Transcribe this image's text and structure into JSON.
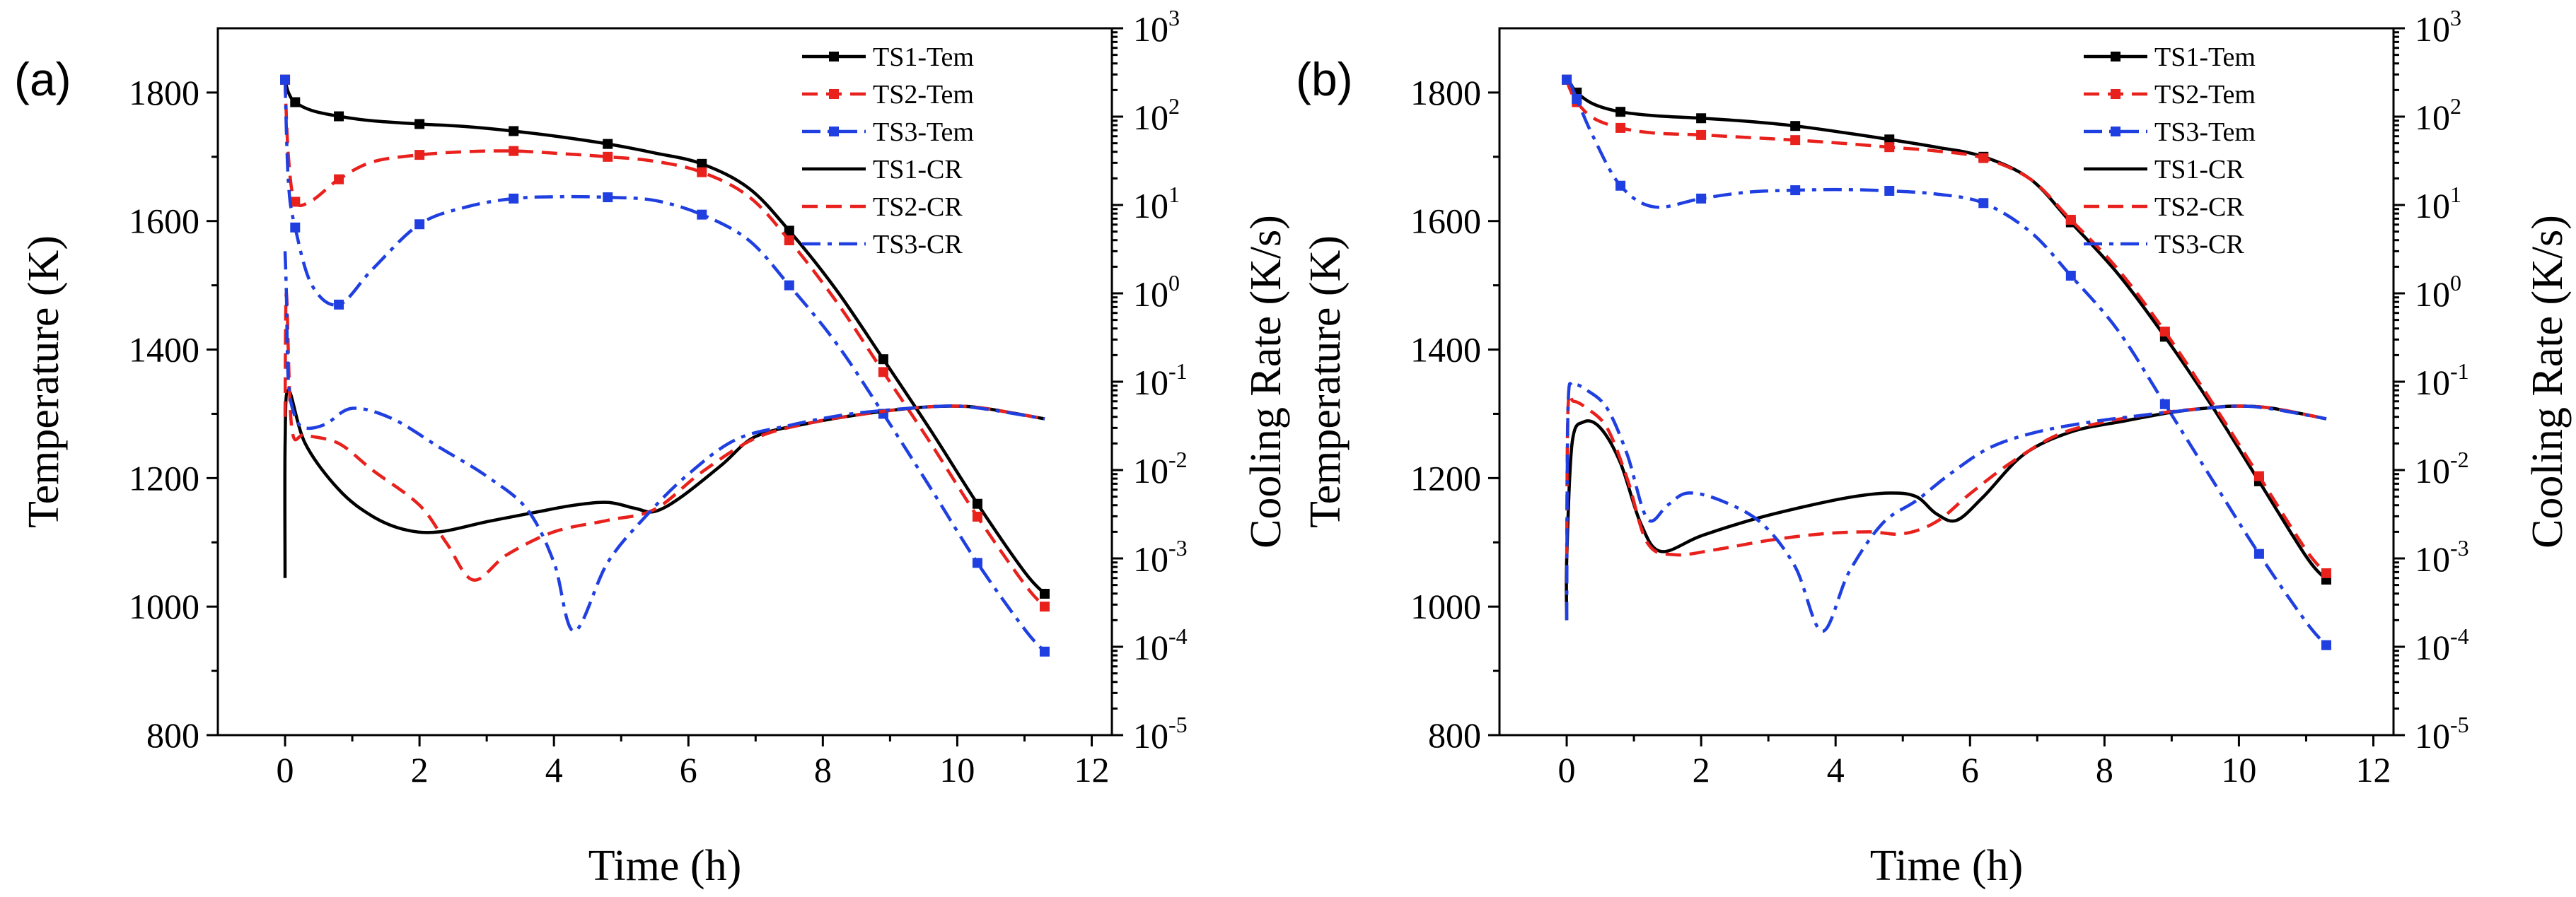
{
  "chart_data": [
    {
      "type": "line",
      "panel_label": "(a)",
      "xlabel": "Time (h)",
      "ylabel": "Temperature (K)",
      "y2label": "Cooling Rate (K/s)",
      "xlim": [
        -1.0,
        12.3
      ],
      "ylim": [
        800,
        1900
      ],
      "y2lim_log10": [
        -5,
        3
      ],
      "xticks": [
        0,
        2,
        4,
        6,
        8,
        10,
        12
      ],
      "yticks": [
        800,
        1000,
        1200,
        1400,
        1600,
        1800
      ],
      "y2ticks": [
        {
          "base": "10",
          "exp": "3"
        },
        {
          "base": "10",
          "exp": "2"
        },
        {
          "base": "10",
          "exp": "1"
        },
        {
          "base": "10",
          "exp": "0"
        },
        {
          "base": "10",
          "exp": "-1"
        },
        {
          "base": "10",
          "exp": "-2"
        },
        {
          "base": "10",
          "exp": "-3"
        },
        {
          "base": "10",
          "exp": "-4"
        },
        {
          "base": "10",
          "exp": "-5"
        }
      ],
      "legend": [
        "TS1-Tem",
        "TS2-Tem",
        "TS3-Tem",
        "TS1-CR",
        "TS2-CR",
        "TS3-CR"
      ],
      "series": [
        {
          "name": "TS1-Tem",
          "axis": "left",
          "color": "#000000",
          "dash": "solid",
          "marker": true,
          "x": [
            0,
            0.05,
            0.15,
            0.4,
            0.8,
            1.3,
            2.0,
            2.7,
            3.4,
            4.1,
            4.8,
            5.5,
            6.2,
            6.9,
            7.5,
            8.2,
            8.9,
            9.6,
            10.3,
            11.0,
            11.3
          ],
          "y": [
            1820,
            1800,
            1785,
            1772,
            1763,
            1756,
            1751,
            1747,
            1740,
            1731,
            1720,
            1706,
            1689,
            1651,
            1585,
            1493,
            1385,
            1275,
            1160,
            1054,
            1020
          ]
        },
        {
          "name": "TS2-Tem",
          "axis": "left",
          "color": "#e8211d",
          "dash": "dash",
          "marker": true,
          "x": [
            0,
            0.05,
            0.15,
            0.4,
            0.8,
            1.3,
            2.0,
            2.7,
            3.4,
            4.1,
            4.8,
            5.5,
            6.2,
            6.9,
            7.5,
            8.2,
            8.9,
            9.6,
            10.3,
            11.0,
            11.3
          ],
          "y": [
            1820,
            1700,
            1630,
            1632,
            1665,
            1692,
            1703,
            1708,
            1709,
            1705,
            1700,
            1693,
            1676,
            1638,
            1570,
            1475,
            1365,
            1255,
            1140,
            1035,
            1000
          ]
        },
        {
          "name": "TS3-Tem",
          "axis": "left",
          "color": "#1f3fe0",
          "dash": "dashdot",
          "marker": true,
          "x": [
            0,
            0.05,
            0.15,
            0.4,
            0.8,
            1.3,
            2.0,
            2.7,
            3.4,
            4.1,
            4.8,
            5.5,
            6.2,
            6.9,
            7.5,
            8.2,
            8.9,
            9.6,
            10.3,
            11.0,
            11.3
          ],
          "y": [
            1820,
            1660,
            1590,
            1500,
            1470,
            1525,
            1595,
            1622,
            1635,
            1638,
            1637,
            1632,
            1610,
            1570,
            1500,
            1410,
            1300,
            1185,
            1068,
            965,
            930
          ]
        },
        {
          "name": "TS1-CR",
          "axis": "right",
          "color": "#000000",
          "dash": "solid",
          "marker": false,
          "x": [
            0,
            0.001,
            0.05,
            0.3,
            0.8,
            1.3,
            1.8,
            2.3,
            3.0,
            3.7,
            4.3,
            4.8,
            5.2,
            5.5,
            5.9,
            6.5,
            7.0,
            7.8,
            8.5,
            9.3,
            9.9,
            10.4,
            11.3
          ],
          "y": [
            0.0006,
            0.02,
            0.08,
            0.02,
            0.006,
            0.003,
            0.0021,
            0.002,
            0.0026,
            0.0033,
            0.004,
            0.0043,
            0.0037,
            0.0034,
            0.005,
            0.0115,
            0.024,
            0.034,
            0.042,
            0.05,
            0.053,
            0.05,
            0.038
          ]
        },
        {
          "name": "TS2-CR",
          "axis": "right",
          "color": "#e8211d",
          "dash": "dash",
          "marker": false,
          "x": [
            0,
            0.02,
            0.1,
            0.3,
            0.8,
            1.3,
            2.0,
            2.4,
            2.8,
            3.3,
            4.0,
            4.8,
            5.5,
            6.2,
            7.0,
            7.8,
            8.5,
            9.3,
            9.9,
            10.4,
            11.3
          ],
          "y": [
            0.04,
            1.0,
            0.03,
            0.025,
            0.02,
            0.01,
            0.004,
            0.0015,
            0.00057,
            0.0011,
            0.002,
            0.0027,
            0.0036,
            0.0095,
            0.023,
            0.034,
            0.042,
            0.05,
            0.053,
            0.05,
            0.038
          ]
        },
        {
          "name": "TS3-CR",
          "axis": "right",
          "color": "#1f3fe0",
          "dash": "dashdot",
          "marker": false,
          "x": [
            0,
            0.02,
            0.05,
            0.15,
            0.3,
            0.6,
            1.0,
            1.6,
            2.3,
            3.0,
            3.6,
            4.0,
            4.3,
            4.8,
            5.4,
            6.0,
            6.7,
            7.5,
            8.3,
            9.0,
            9.6,
            10.0,
            10.5,
            11.3
          ],
          "y": [
            3.0,
            1.0,
            0.1,
            0.04,
            0.03,
            0.033,
            0.05,
            0.038,
            0.018,
            0.0085,
            0.0036,
            0.0009,
            0.00015,
            0.0009,
            0.0032,
            0.009,
            0.022,
            0.032,
            0.042,
            0.048,
            0.052,
            0.053,
            0.048,
            0.038
          ]
        }
      ]
    },
    {
      "type": "line",
      "panel_label": "(b)",
      "xlabel": "Time (h)",
      "ylabel": "Temperature (K)",
      "y2label": "Cooling Rate (K/s)",
      "xlim": [
        -1.0,
        12.3
      ],
      "ylim": [
        800,
        1900
      ],
      "y2lim_log10": [
        -5,
        3
      ],
      "xticks": [
        0,
        2,
        4,
        6,
        8,
        10,
        12
      ],
      "yticks": [
        800,
        1000,
        1200,
        1400,
        1600,
        1800
      ],
      "y2ticks": [
        {
          "base": "10",
          "exp": "3"
        },
        {
          "base": "10",
          "exp": "2"
        },
        {
          "base": "10",
          "exp": "1"
        },
        {
          "base": "10",
          "exp": "0"
        },
        {
          "base": "10",
          "exp": "-1"
        },
        {
          "base": "10",
          "exp": "-2"
        },
        {
          "base": "10",
          "exp": "-3"
        },
        {
          "base": "10",
          "exp": "-4"
        },
        {
          "base": "10",
          "exp": "-5"
        }
      ],
      "legend": [
        "TS1-Tem",
        "TS2-Tem",
        "TS3-Tem",
        "TS1-CR",
        "TS2-CR",
        "TS3-CR"
      ],
      "series": [
        {
          "name": "TS1-Tem",
          "axis": "left",
          "color": "#000000",
          "dash": "solid",
          "marker": true,
          "x": [
            0,
            0.05,
            0.15,
            0.4,
            0.8,
            1.3,
            2.0,
            2.7,
            3.4,
            4.1,
            4.8,
            5.5,
            6.2,
            6.9,
            7.5,
            8.2,
            8.9,
            9.6,
            10.3,
            11.0,
            11.3
          ],
          "y": [
            1820,
            1815,
            1800,
            1782,
            1770,
            1764,
            1760,
            1755,
            1748,
            1738,
            1727,
            1715,
            1700,
            1665,
            1598,
            1518,
            1420,
            1312,
            1195,
            1078,
            1042
          ]
        },
        {
          "name": "TS2-Tem",
          "axis": "left",
          "color": "#e8211d",
          "dash": "dash",
          "marker": true,
          "x": [
            0,
            0.05,
            0.15,
            0.4,
            0.8,
            1.3,
            2.0,
            2.7,
            3.4,
            4.1,
            4.8,
            5.5,
            6.2,
            6.9,
            7.5,
            8.2,
            8.9,
            9.6,
            10.3,
            11.0,
            11.3
          ],
          "y": [
            1820,
            1805,
            1785,
            1760,
            1745,
            1737,
            1734,
            1730,
            1726,
            1721,
            1715,
            1709,
            1698,
            1665,
            1602,
            1525,
            1428,
            1318,
            1203,
            1088,
            1052
          ]
        },
        {
          "name": "TS3-Tem",
          "axis": "left",
          "color": "#1f3fe0",
          "dash": "dashdot",
          "marker": true,
          "x": [
            0,
            0.05,
            0.15,
            0.4,
            0.8,
            1.3,
            2.0,
            2.7,
            3.4,
            4.1,
            4.8,
            5.5,
            6.2,
            6.9,
            7.5,
            8.2,
            8.9,
            9.6,
            10.3,
            11.0,
            11.3
          ],
          "y": [
            1820,
            1815,
            1790,
            1730,
            1655,
            1622,
            1635,
            1645,
            1648,
            1649,
            1647,
            1642,
            1628,
            1583,
            1515,
            1430,
            1315,
            1198,
            1082,
            976,
            940
          ]
        },
        {
          "name": "TS1-CR",
          "axis": "right",
          "color": "#000000",
          "dash": "solid",
          "marker": false,
          "x": [
            0,
            0.001,
            0.08,
            0.25,
            0.5,
            0.8,
            1.1,
            1.4,
            2.0,
            2.8,
            3.5,
            4.2,
            4.8,
            5.2,
            5.5,
            5.8,
            6.2,
            6.8,
            7.5,
            8.3,
            9.0,
            9.6,
            10.0,
            10.5,
            11.3
          ],
          "y": [
            0.0002,
            0.001,
            0.02,
            0.035,
            0.03,
            0.012,
            0.0025,
            0.0012,
            0.0018,
            0.0028,
            0.0038,
            0.0049,
            0.0055,
            0.005,
            0.0032,
            0.0027,
            0.005,
            0.015,
            0.027,
            0.036,
            0.045,
            0.051,
            0.053,
            0.05,
            0.038
          ]
        },
        {
          "name": "TS2-CR",
          "axis": "right",
          "color": "#e8211d",
          "dash": "dash",
          "marker": false,
          "x": [
            0,
            0.02,
            0.1,
            0.3,
            0.6,
            0.9,
            1.2,
            1.6,
            2.2,
            3.0,
            3.8,
            4.5,
            5.0,
            5.5,
            6.0,
            6.6,
            7.3,
            8.0,
            8.8,
            9.6,
            10.0,
            10.5,
            11.3
          ],
          "y": [
            0.001,
            0.05,
            0.06,
            0.05,
            0.03,
            0.008,
            0.0015,
            0.0011,
            0.00125,
            0.0016,
            0.0019,
            0.002,
            0.0019,
            0.0026,
            0.0054,
            0.012,
            0.025,
            0.035,
            0.044,
            0.051,
            0.053,
            0.05,
            0.038
          ]
        },
        {
          "name": "TS3-CR",
          "axis": "right",
          "color": "#1f3fe0",
          "dash": "dashdot",
          "marker": false,
          "x": [
            0,
            0.02,
            0.1,
            0.3,
            0.6,
            0.9,
            1.2,
            1.5,
            1.8,
            2.3,
            2.9,
            3.4,
            3.8,
            4.2,
            4.7,
            5.2,
            5.7,
            6.3,
            7.0,
            7.8,
            8.6,
            9.4,
            10.0,
            10.5,
            11.3
          ],
          "y": [
            0.0002,
            0.05,
            0.09,
            0.08,
            0.05,
            0.015,
            0.0028,
            0.004,
            0.0055,
            0.0045,
            0.0025,
            0.0008,
            0.00015,
            0.0007,
            0.0025,
            0.0045,
            0.009,
            0.018,
            0.027,
            0.035,
            0.042,
            0.049,
            0.053,
            0.049,
            0.038
          ]
        }
      ]
    }
  ]
}
